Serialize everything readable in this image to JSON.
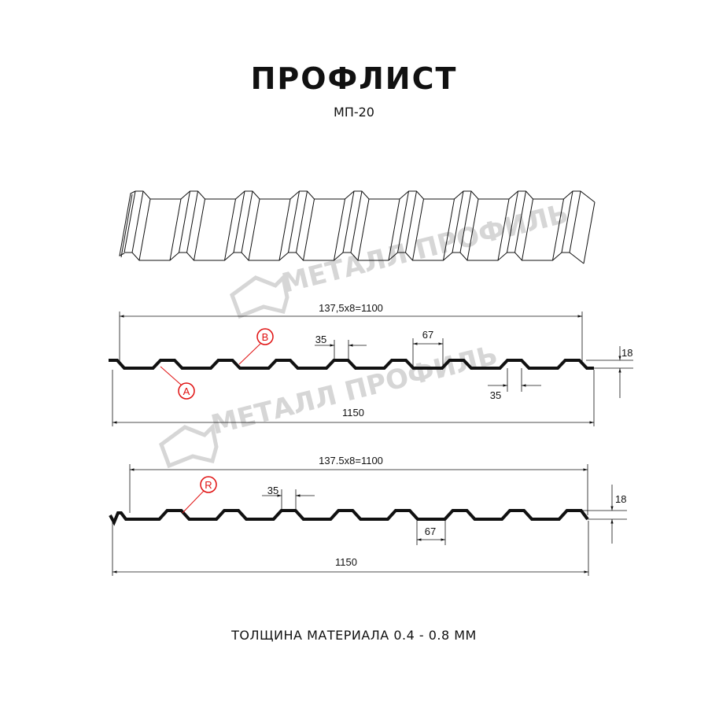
{
  "header": {
    "title": "ПРОФЛИСТ",
    "subtitle": "МП-20"
  },
  "footer": {
    "thickness": "ТОЛЩИНА МАТЕРИАЛА 0.4 - 0.8 ММ"
  },
  "watermark": {
    "text": "МЕТАЛЛ ПРОФИЛЬ",
    "color": "#d6d6d6"
  },
  "profile_a": {
    "pitch_dim": "137,5x8=1100",
    "width_dim": "1150",
    "top_dim": "35",
    "bottom_dim": "67",
    "lower_top_dim": "35",
    "height_dim": "18",
    "label_a": "A",
    "label_b": "B"
  },
  "profile_b": {
    "pitch_dim": "137.5x8=1100",
    "width_dim": "1150",
    "top_dim": "35",
    "bottom_dim": "67",
    "height_dim": "18",
    "label_r": "R"
  },
  "colors": {
    "line": "#111111",
    "annotation": "#e01010"
  }
}
